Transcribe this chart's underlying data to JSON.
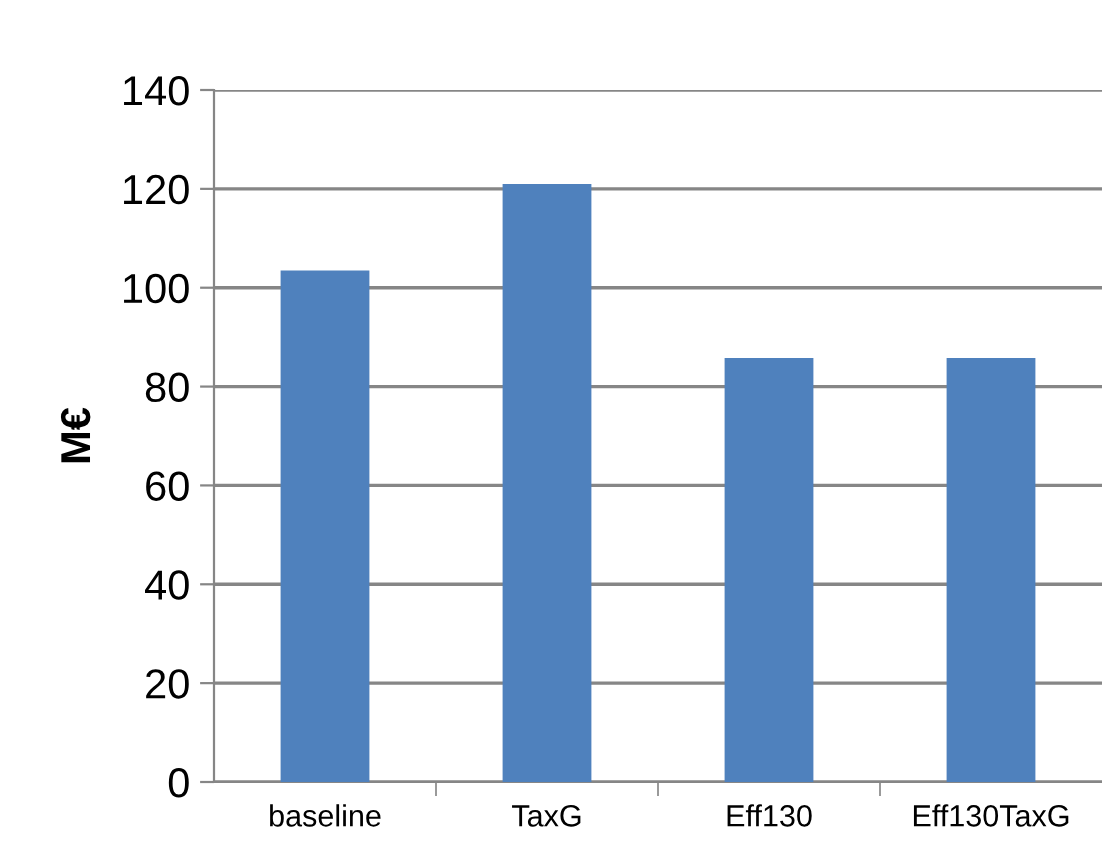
{
  "chart_data": {
    "type": "bar",
    "ylabel": "M€",
    "categories": [
      "baseline",
      "TaxG",
      "Eff130",
      "Eff130TaxG"
    ],
    "values": [
      103.5,
      121,
      85.8,
      85.8
    ],
    "color": "#4f81bd",
    "ylim": [
      0,
      140
    ],
    "yticks": [
      0,
      20,
      40,
      60,
      80,
      100,
      120,
      140
    ],
    "grid": "y",
    "legend": false
  }
}
